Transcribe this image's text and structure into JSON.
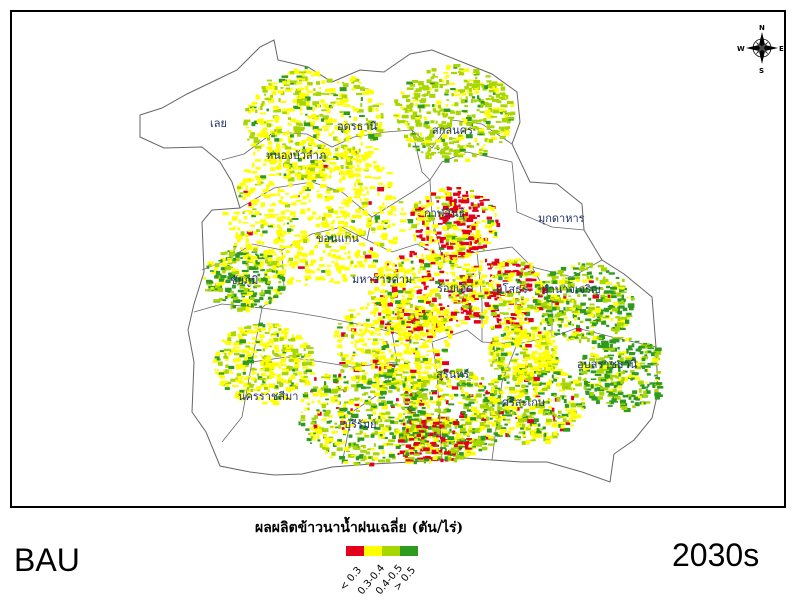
{
  "map": {
    "provinces": [
      {
        "id": "loei",
        "label": "เลย"
      },
      {
        "id": "udon",
        "label": "อุดรธานี"
      },
      {
        "id": "sakon",
        "label": "สกลนคร"
      },
      {
        "id": "nongbua",
        "label": "หนองบัวลำภู"
      },
      {
        "id": "kalasin",
        "label": "กาฬสินธุ์"
      },
      {
        "id": "mukdahan",
        "label": "มุกดาหาร"
      },
      {
        "id": "khonkaen",
        "label": "ขอนแก่น"
      },
      {
        "id": "chaiyaphum",
        "label": "ชัยภูมิ"
      },
      {
        "id": "mahasarakham",
        "label": "มหาสารคาม"
      },
      {
        "id": "roiet",
        "label": "ร้อยเอ็ด"
      },
      {
        "id": "yasothon",
        "label": "ยโสธร"
      },
      {
        "id": "amnat",
        "label": "อำนาจเจริญ"
      },
      {
        "id": "ubon",
        "label": "อุบลราชธานี"
      },
      {
        "id": "korat",
        "label": "นครราชสีมา"
      },
      {
        "id": "buriram",
        "label": "บุรีรัมย์"
      },
      {
        "id": "surin",
        "label": "สุรินทร์"
      },
      {
        "id": "sisaket",
        "label": "ศรีสะเกษ"
      }
    ],
    "colors": {
      "lt03": "#e3001b",
      "c03_04": "#ffff00",
      "c04_05": "#a8d600",
      "gt05": "#2e9a1e",
      "boundary": "#666666"
    }
  },
  "compass": {
    "n": "N",
    "s": "S",
    "e": "E",
    "w": "W"
  },
  "legend": {
    "title": "ผลผลิตข้าวนาน้ำฝนเฉลี่ย (ตัน/ไร่)",
    "classes": [
      {
        "label": "< 0.3",
        "color": "#e3001b"
      },
      {
        "label": "0.3-0.4",
        "color": "#ffff00"
      },
      {
        "label": "0.4-0.5",
        "color": "#a8d600"
      },
      {
        "label": "> 0.5",
        "color": "#2e9a1e"
      }
    ]
  },
  "scenario": "BAU",
  "period": "2030s"
}
